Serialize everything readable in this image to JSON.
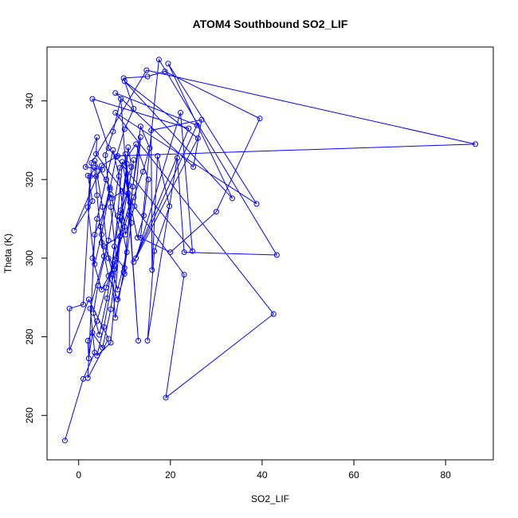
{
  "chart_data": {
    "type": "line",
    "title": "ATOM4 Southbound SO2_LIF",
    "xlabel": "SO2_LIF",
    "ylabel": "Theta (K)",
    "xlim": [
      -6.9,
      90.4
    ],
    "ylim": [
      248.7,
      353.7
    ],
    "xticks": [
      0,
      20,
      40,
      60,
      80
    ],
    "yticks": [
      260,
      280,
      300,
      320,
      340
    ],
    "grid": false,
    "marker": "open-circle",
    "colors": {
      "series": "#0000ff",
      "axes": "#000000"
    },
    "series": [
      {
        "points": [
          [
            -3.0,
            253.6
          ],
          [
            1.0,
            269.3
          ],
          [
            3.5,
            276.0
          ],
          [
            2.5,
            287.2
          ],
          [
            5.5,
            300.5
          ],
          [
            4.8,
            308.0
          ],
          [
            6.8,
            318.0
          ],
          [
            3.5,
            324.8
          ],
          [
            5.2,
            313.0
          ],
          [
            6.5,
            300.0
          ],
          [
            8.5,
            292.0
          ],
          [
            10.5,
            301.5
          ],
          [
            9.0,
            310.5
          ],
          [
            11.0,
            318.5
          ],
          [
            12.0,
            325.0
          ],
          [
            9.5,
            309.5
          ],
          [
            7.8,
            298.0
          ],
          [
            5.0,
            292.0
          ],
          [
            3.0,
            300.0
          ],
          [
            4.0,
            310.0
          ],
          [
            6.0,
            320.0
          ],
          [
            7.5,
            327.5
          ],
          [
            8.8,
            320.8
          ],
          [
            10.2,
            306.0
          ],
          [
            12.2,
            313.2
          ],
          [
            13.5,
            330.8
          ],
          [
            11.8,
            318.2
          ],
          [
            9.8,
            296.5
          ],
          [
            8.0,
            284.8
          ],
          [
            7.2,
            296.0
          ],
          [
            8.5,
            310.8
          ],
          [
            9.5,
            324.5
          ],
          [
            10.8,
            316.5
          ],
          [
            12.8,
            305.2
          ],
          [
            14.2,
            310.8
          ],
          [
            15.2,
            320.0
          ],
          [
            12.5,
            329.0
          ],
          [
            9.0,
            323.0
          ],
          [
            6.5,
            304.5
          ],
          [
            4.2,
            293.0
          ],
          [
            3.2,
            286.0
          ],
          [
            4.5,
            280.5
          ],
          [
            6.2,
            289.8
          ],
          [
            7.8,
            303.0
          ],
          [
            9.2,
            312.2
          ],
          [
            10.5,
            324.0
          ],
          [
            11.5,
            309.0
          ],
          [
            10.0,
            297.5
          ],
          [
            8.2,
            300.0
          ],
          [
            7.0,
            313.0
          ],
          [
            5.8,
            326.2
          ],
          [
            7.5,
            332.2
          ],
          [
            9.2,
            340.5
          ],
          [
            13.0,
            279.0
          ],
          [
            10.2,
            326.5
          ],
          [
            11.2,
            314.2
          ],
          [
            9.0,
            305.5
          ],
          [
            7.0,
            287.0
          ],
          [
            5.2,
            277.2
          ],
          [
            3.0,
            281.0
          ],
          [
            2.2,
            274.5
          ],
          [
            2.0,
            279.0
          ],
          [
            4.0,
            284.0
          ],
          [
            6.0,
            292.5
          ],
          [
            8.0,
            299.5
          ],
          [
            10.0,
            308.0
          ],
          [
            12.0,
            315.5
          ],
          [
            14.0,
            322.0
          ],
          [
            15.5,
            328.0
          ],
          [
            13.5,
            333.5
          ],
          [
            11.0,
            311.0
          ],
          [
            10.0,
            296.0
          ],
          [
            8.5,
            289.5
          ],
          [
            6.5,
            295.5
          ],
          [
            5.0,
            304.0
          ],
          [
            4.0,
            316.0
          ],
          [
            3.5,
            323.0
          ],
          [
            2.5,
            320.8
          ],
          [
            2.0,
            313.0
          ],
          [
            3.5,
            298.5
          ],
          [
            5.0,
            306.0
          ],
          [
            6.8,
            317.5
          ],
          [
            8.2,
            325.8
          ],
          [
            10.0,
            332.8
          ],
          [
            12.0,
            338.0
          ],
          [
            9.8,
            345.8
          ],
          [
            15.0,
            346.2
          ],
          [
            18.8,
            347.5
          ],
          [
            39.5,
            335.5
          ],
          [
            30.0,
            311.8
          ],
          [
            20.0,
            301.5
          ],
          [
            13.5,
            305.2
          ],
          [
            17.5,
            350.5
          ],
          [
            43.2,
            300.8
          ],
          [
            23.0,
            301.5
          ],
          [
            21.5,
            325.5
          ],
          [
            15.0,
            279.0
          ],
          [
            16.5,
            301.8
          ],
          [
            19.8,
            313.2
          ],
          [
            17.2,
            326.0
          ],
          [
            16.0,
            297.0
          ],
          [
            15.8,
            332.5
          ],
          [
            26.8,
            335.2
          ],
          [
            25.0,
            323.2
          ],
          [
            8.0,
            342.0
          ],
          [
            25.8,
            333.8
          ],
          [
            12.0,
            299.0
          ],
          [
            24.0,
            333.0
          ],
          [
            3.0,
            340.5
          ],
          [
            6.5,
            328.0
          ],
          [
            24.8,
            301.8
          ],
          [
            22.2,
            337.0
          ],
          [
            12.5,
            300.0
          ],
          [
            26.0,
            330.5
          ],
          [
            10.0,
            345.0
          ],
          [
            33.5,
            315.2
          ],
          [
            19.5,
            349.5
          ],
          [
            38.8,
            313.8
          ],
          [
            8.0,
            337.0
          ],
          [
            42.5,
            285.8
          ],
          [
            19.0,
            264.5
          ],
          [
            23.0,
            295.8
          ],
          [
            3.8,
            326.5
          ],
          [
            4.0,
            330.8
          ],
          [
            1.5,
            323.2
          ],
          [
            5.2,
            322.5
          ],
          [
            3.8,
            320.8
          ],
          [
            2.0,
            321.0
          ],
          [
            3.0,
            314.5
          ],
          [
            -1.0,
            307.0
          ],
          [
            5.0,
            323.5
          ],
          [
            8.5,
            326.0
          ],
          [
            86.5,
            329.0
          ],
          [
            14.8,
            347.8
          ],
          [
            2.8,
            324.2
          ],
          [
            1.0,
            288.2
          ],
          [
            -2.0,
            287.2
          ],
          [
            -2.0,
            276.5
          ],
          [
            2.2,
            289.5
          ],
          [
            6.5,
            279.5
          ],
          [
            2.0,
            269.5
          ],
          [
            3.5,
            306.0
          ],
          [
            7.0,
            316.2
          ],
          [
            9.2,
            305.8
          ],
          [
            5.5,
            303.0
          ],
          [
            7.8,
            297.2
          ],
          [
            5.5,
            282.5
          ],
          [
            4.0,
            275.2
          ],
          [
            7.0,
            278.5
          ],
          [
            10.8,
            328.2
          ],
          [
            11.5,
            323.2
          ],
          [
            9.5,
            317.0
          ],
          [
            7.2,
            315.2
          ]
        ]
      }
    ]
  }
}
